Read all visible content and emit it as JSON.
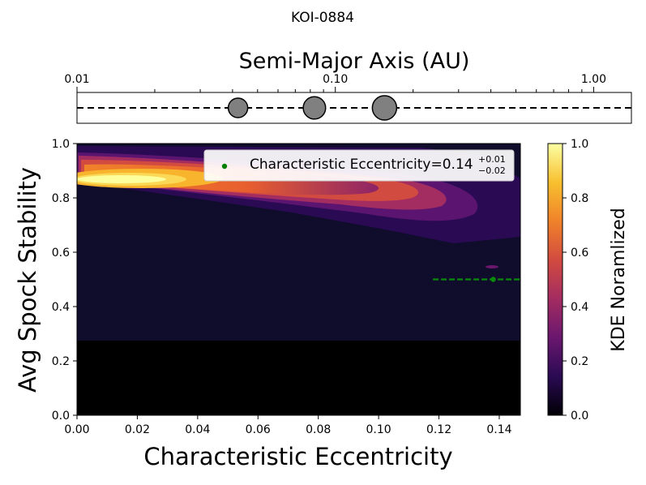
{
  "suptitle": "KOI-0884",
  "chart_data": [
    {
      "type": "scatter",
      "title": "Semi-Major Axis (AU)",
      "xscale": "log",
      "xlim": [
        0.01,
        1.4
      ],
      "xticks": [
        {
          "value": 0.01,
          "label": "0.01"
        },
        {
          "value": 0.1,
          "label": "0.10"
        },
        {
          "value": 1.0,
          "label": "1.00"
        }
      ],
      "planets": [
        {
          "a": 0.042,
          "size": 1.0
        },
        {
          "a": 0.083,
          "size": 1.15
        },
        {
          "a": 0.155,
          "size": 1.25
        }
      ],
      "marker_color": "#808080",
      "line_style": "dashed"
    },
    {
      "type": "heatmap",
      "xlabel": "Characteristic Eccentricity",
      "ylabel": "Avg Spock Stability",
      "xlim": [
        0.0,
        0.147
      ],
      "ylim": [
        0.0,
        1.0
      ],
      "xticks": [
        "0.00",
        "0.02",
        "0.04",
        "0.06",
        "0.08",
        "0.10",
        "0.12",
        "0.14"
      ],
      "yticks": [
        "0.0",
        "0.2",
        "0.4",
        "0.6",
        "0.8",
        "1.0"
      ],
      "kde_ridge": {
        "e_start": 0.0,
        "e_end": 0.147,
        "stability_start": 0.89,
        "stability_end": 0.77,
        "peak_e": 0.013
      },
      "marker": {
        "e": 0.138,
        "stability": 0.5,
        "e_minus": 0.02,
        "e_plus": 0.01,
        "color": "#008000"
      },
      "legend": {
        "label_prefix": "Characteristic Eccentricity=",
        "value": "0.14",
        "plus": "+0.01",
        "minus": "−0.02",
        "position": "top-right"
      },
      "colorbar": {
        "label": "KDE Noramlized",
        "ticks": [
          "0.0",
          "0.2",
          "0.4",
          "0.6",
          "0.8",
          "1.0"
        ],
        "colormap": "inferno-like",
        "stops": [
          "#000004",
          "#2a0a53",
          "#6a176e",
          "#a32c61",
          "#d24b40",
          "#f0822a",
          "#f8c02f",
          "#fcffa4"
        ]
      }
    }
  ]
}
